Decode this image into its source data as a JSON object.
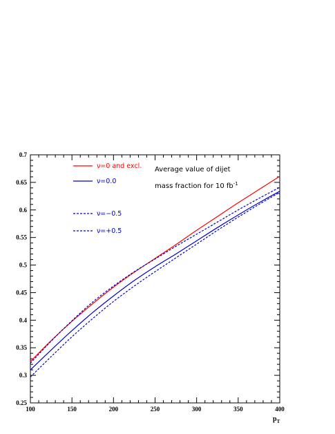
{
  "chart_data": {
    "type": "line",
    "xlabel": "p",
    "xlabel_sub": "T",
    "x_ticks": [
      100,
      150,
      200,
      250,
      300,
      350,
      400
    ],
    "y_ticks": [
      0.25,
      0.3,
      0.35,
      0.4,
      0.45,
      0.5,
      0.55,
      0.6,
      0.65,
      0.7
    ],
    "xlim": [
      100,
      400
    ],
    "ylim": [
      0.25,
      0.7
    ],
    "grid": false,
    "legend_position": "top-left",
    "annotation": {
      "line1": "Average value of dijet",
      "line2": "mass fraction for 10 fb",
      "line2_sup": "-1"
    },
    "series": [
      {
        "name": "ν=0 and excl.",
        "color": "#ff0000",
        "style": "solid",
        "x": [
          100,
          125,
          150,
          175,
          200,
          225,
          250,
          275,
          300,
          325,
          350,
          375,
          400
        ],
        "y": [
          0.325,
          0.363,
          0.398,
          0.43,
          0.46,
          0.487,
          0.512,
          0.537,
          0.563,
          0.588,
          0.613,
          0.637,
          0.661
        ]
      },
      {
        "name": "ν=0.0",
        "color": "#0000cc",
        "style": "solid",
        "x": [
          100,
          125,
          150,
          175,
          200,
          225,
          250,
          275,
          300,
          325,
          350,
          375,
          400
        ],
        "y": [
          0.31,
          0.346,
          0.381,
          0.414,
          0.444,
          0.472,
          0.497,
          0.52,
          0.544,
          0.568,
          0.591,
          0.613,
          0.634
        ]
      },
      {
        "name": "ν=−0.5",
        "color": "#0000cc",
        "style": "dashed",
        "x": [
          100,
          125,
          150,
          175,
          200,
          225,
          250,
          275,
          300,
          325,
          350,
          375,
          400
        ],
        "y": [
          0.322,
          0.362,
          0.399,
          0.433,
          0.462,
          0.488,
          0.511,
          0.534,
          0.556,
          0.578,
          0.6,
          0.621,
          0.641
        ]
      },
      {
        "name": "ν=+0.5",
        "color": "#0000cc",
        "style": "dashed",
        "x": [
          100,
          125,
          150,
          175,
          200,
          225,
          250,
          275,
          300,
          325,
          350,
          375,
          400
        ],
        "y": [
          0.297,
          0.334,
          0.37,
          0.403,
          0.434,
          0.462,
          0.488,
          0.513,
          0.538,
          0.563,
          0.587,
          0.61,
          0.632
        ]
      }
    ]
  }
}
